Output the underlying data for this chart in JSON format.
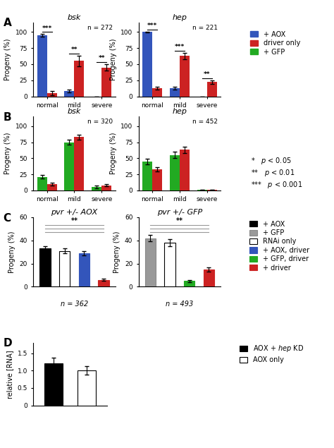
{
  "panel_A_bsk": {
    "title": "bsk",
    "n": "n = 272",
    "categories": [
      "normal",
      "mild",
      "severe"
    ],
    "series": {
      "AOX": [
        95,
        8,
        0
      ],
      "driver": [
        5,
        55,
        45
      ]
    },
    "errors": {
      "AOX": [
        2,
        2,
        0
      ],
      "driver": [
        3,
        8,
        5
      ]
    },
    "sig_above": [
      "***",
      "**",
      "**"
    ],
    "ylim": [
      0,
      115
    ]
  },
  "panel_A_hep": {
    "title": "hep",
    "n": "n = 221",
    "categories": [
      "normal",
      "mild",
      "severe"
    ],
    "series": {
      "AOX": [
        100,
        13,
        0
      ],
      "driver": [
        13,
        63,
        22
      ]
    },
    "errors": {
      "AOX": [
        1,
        2,
        0
      ],
      "driver": [
        2,
        5,
        3
      ]
    },
    "sig_above": [
      "***",
      "***",
      "**"
    ],
    "ylim": [
      0,
      115
    ]
  },
  "panel_B_bsk": {
    "title": "bsk",
    "n": "n = 320",
    "categories": [
      "normal",
      "mild",
      "severe"
    ],
    "series": {
      "GFP": [
        21,
        75,
        5
      ],
      "driver": [
        10,
        83,
        8
      ]
    },
    "errors": {
      "GFP": [
        3,
        4,
        2
      ],
      "driver": [
        2,
        4,
        2
      ]
    },
    "ylim": [
      0,
      115
    ]
  },
  "panel_B_hep": {
    "title": "hep",
    "n": "n = 452",
    "categories": [
      "normal",
      "mild",
      "severe"
    ],
    "series": {
      "GFP": [
        45,
        55,
        1
      ],
      "driver": [
        33,
        63,
        1
      ]
    },
    "errors": {
      "GFP": [
        4,
        5,
        0.5
      ],
      "driver": [
        3,
        5,
        0.5
      ]
    },
    "ylim": [
      0,
      115
    ]
  },
  "panel_C_AOX": {
    "title": "pvr +/- AOX",
    "n": "n = 362",
    "bars": [
      33,
      31,
      29,
      6
    ],
    "errors": [
      2,
      2,
      2,
      1
    ],
    "colors": [
      "#000000",
      "#ffffff",
      "#3355BB",
      "#CC2222"
    ],
    "edge_colors": [
      "#000000",
      "#000000",
      "#3355BB",
      "#CC2222"
    ],
    "sig": "**",
    "ylim": [
      0,
      60
    ],
    "yticks": [
      0,
      20,
      40,
      60
    ]
  },
  "panel_C_GFP": {
    "title": "pvr +/- GFP",
    "n": "n = 493",
    "bars": [
      42,
      38,
      5,
      15
    ],
    "errors": [
      3,
      3,
      1,
      2
    ],
    "colors": [
      "#999999",
      "#ffffff",
      "#22AA22",
      "#CC2222"
    ],
    "edge_colors": [
      "#888888",
      "#000000",
      "#22AA22",
      "#CC2222"
    ],
    "sig": "**",
    "ylim": [
      0,
      60
    ],
    "yticks": [
      0,
      20,
      40,
      60
    ]
  },
  "panel_D": {
    "bars": [
      1.2,
      1.0
    ],
    "errors": [
      0.17,
      0.12
    ],
    "colors": [
      "#000000",
      "#ffffff"
    ],
    "edge_colors": [
      "#000000",
      "#000000"
    ],
    "ylim": [
      0,
      1.8
    ],
    "yticks": [
      0,
      0.5,
      1.0,
      1.5
    ],
    "ylabel": "relative [RNA]"
  },
  "colors": {
    "blue": "#3355BB",
    "red": "#CC2222",
    "green": "#22AA22",
    "black": "#000000",
    "gray": "#999999",
    "white": "#ffffff"
  },
  "legend_AB": {
    "entries": [
      "+ AOX",
      "driver only",
      "+ GFP"
    ],
    "colors": [
      "#3355BB",
      "#CC2222",
      "#22AA22"
    ]
  },
  "legend_sig": {
    "entries": [
      "*   p < 0.05",
      "**  p < 0.01",
      "*** p < 0.001"
    ]
  },
  "legend_C": {
    "entries": [
      "+ AOX",
      "+ GFP",
      "RNAi only",
      "+ AOX, driver",
      "+ GFP, driver",
      "+ driver"
    ],
    "face_colors": [
      "#000000",
      "#999999",
      "#ffffff",
      "#3355BB",
      "#22AA22",
      "#CC2222"
    ],
    "edge_colors": [
      "#000000",
      "#888888",
      "#000000",
      "#3355BB",
      "#22AA22",
      "#CC2222"
    ]
  },
  "legend_D": {
    "entries": [
      "AOX + hep KD",
      "AOX only"
    ],
    "face_colors": [
      "#000000",
      "#ffffff"
    ],
    "edge_colors": [
      "#000000",
      "#000000"
    ]
  }
}
